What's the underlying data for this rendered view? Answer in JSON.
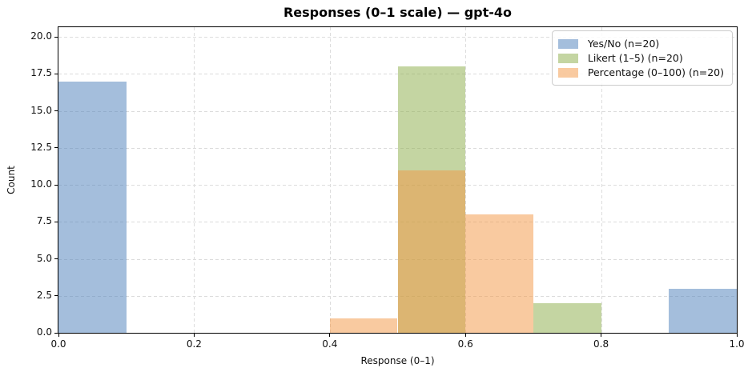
{
  "chart_data": {
    "type": "bar",
    "subtype": "histogram",
    "title": "Responses (0–1 scale) — gpt-4o",
    "xlabel": "Response (0–1)",
    "ylabel": "Count",
    "xlim": [
      0.0,
      1.0
    ],
    "ylim": [
      0.0,
      20.65
    ],
    "bin_width": 0.1,
    "grid": "dashed",
    "grid_color": "#dcdcdc",
    "spine_color": "#000000",
    "legend_position": "upper right",
    "legend_border_color": "#cccccc",
    "bar_alpha": 0.5,
    "xticks": [
      {
        "value": 0.0,
        "label": "0.0"
      },
      {
        "value": 0.2,
        "label": "0.2"
      },
      {
        "value": 0.4,
        "label": "0.4"
      },
      {
        "value": 0.6,
        "label": "0.6"
      },
      {
        "value": 0.8,
        "label": "0.8"
      },
      {
        "value": 1.0,
        "label": "1.0"
      }
    ],
    "yticks": [
      {
        "value": 0.0,
        "label": "0.0"
      },
      {
        "value": 2.5,
        "label": "2.5"
      },
      {
        "value": 5.0,
        "label": "5.0"
      },
      {
        "value": 7.5,
        "label": "7.5"
      },
      {
        "value": 10.0,
        "label": "10.0"
      },
      {
        "value": 12.5,
        "label": "12.5"
      },
      {
        "value": 15.0,
        "label": "15.0"
      },
      {
        "value": 17.5,
        "label": "17.5"
      },
      {
        "value": 20.0,
        "label": "20.0"
      }
    ],
    "series": [
      {
        "name": "Yes/No (n=20)",
        "color": "#497DB9",
        "blended_color_on_white": "#A4BEDC",
        "bins": [
          {
            "x0": 0.0,
            "x1": 0.1,
            "count": 17
          },
          {
            "x0": 0.9,
            "x1": 1.0,
            "count": 3
          }
        ]
      },
      {
        "name": "Likert (1–5) (n=20)",
        "color": "#89AB45",
        "blended_color_on_white": "#C4D5A2",
        "bins": [
          {
            "x0": 0.5,
            "x1": 0.6,
            "count": 18
          },
          {
            "x0": 0.7,
            "x1": 0.8,
            "count": 2
          }
        ]
      },
      {
        "name": "Percentage (0–100) (n=20)",
        "color": "#F39541",
        "blended_color_on_white": "#F9CBA2",
        "bins": [
          {
            "x0": 0.4,
            "x1": 0.5,
            "count": 1
          },
          {
            "x0": 0.5,
            "x1": 0.6,
            "count": 11
          },
          {
            "x0": 0.6,
            "x1": 0.7,
            "count": 8
          }
        ]
      }
    ]
  }
}
